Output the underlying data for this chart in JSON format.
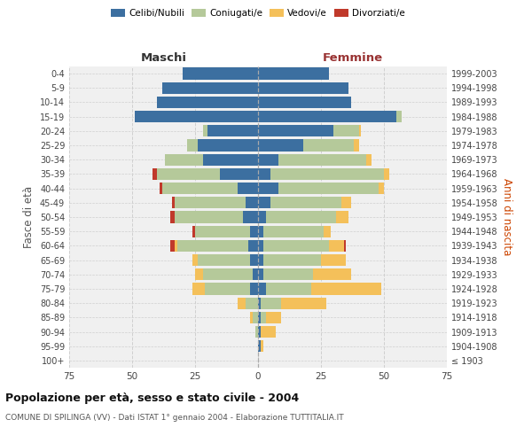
{
  "age_groups": [
    "100+",
    "95-99",
    "90-94",
    "85-89",
    "80-84",
    "75-79",
    "70-74",
    "65-69",
    "60-64",
    "55-59",
    "50-54",
    "45-49",
    "40-44",
    "35-39",
    "30-34",
    "25-29",
    "20-24",
    "15-19",
    "10-14",
    "5-9",
    "0-4"
  ],
  "birth_years": [
    "≤ 1903",
    "1904-1908",
    "1909-1913",
    "1914-1918",
    "1919-1923",
    "1924-1928",
    "1929-1933",
    "1934-1938",
    "1939-1943",
    "1944-1948",
    "1949-1953",
    "1954-1958",
    "1959-1963",
    "1964-1968",
    "1969-1973",
    "1974-1978",
    "1979-1983",
    "1984-1988",
    "1989-1993",
    "1994-1998",
    "1999-2003"
  ],
  "males": {
    "celibi": [
      0,
      0,
      0,
      0,
      0,
      3,
      2,
      3,
      4,
      3,
      6,
      5,
      8,
      15,
      22,
      24,
      20,
      49,
      40,
      38,
      30
    ],
    "coniugati": [
      0,
      0,
      1,
      2,
      5,
      18,
      20,
      21,
      28,
      22,
      27,
      28,
      30,
      25,
      15,
      4,
      2,
      0,
      0,
      0,
      0
    ],
    "vedovi": [
      0,
      0,
      0,
      1,
      3,
      5,
      3,
      2,
      1,
      0,
      0,
      0,
      0,
      0,
      0,
      0,
      0,
      0,
      0,
      0,
      0
    ],
    "divorziati": [
      0,
      0,
      0,
      0,
      0,
      0,
      0,
      0,
      2,
      1,
      2,
      1,
      1,
      2,
      0,
      0,
      0,
      0,
      0,
      0,
      0
    ]
  },
  "females": {
    "nubili": [
      0,
      1,
      1,
      1,
      1,
      3,
      2,
      2,
      2,
      2,
      3,
      5,
      8,
      5,
      8,
      18,
      30,
      55,
      37,
      36,
      28
    ],
    "coniugate": [
      0,
      0,
      0,
      2,
      8,
      18,
      20,
      23,
      26,
      24,
      28,
      28,
      40,
      45,
      35,
      20,
      10,
      2,
      0,
      0,
      0
    ],
    "vedove": [
      0,
      1,
      6,
      6,
      18,
      28,
      15,
      10,
      6,
      3,
      5,
      4,
      2,
      2,
      2,
      2,
      1,
      0,
      0,
      0,
      0
    ],
    "divorziate": [
      0,
      0,
      0,
      0,
      0,
      0,
      0,
      0,
      1,
      0,
      0,
      0,
      0,
      0,
      0,
      0,
      0,
      0,
      0,
      0,
      0
    ]
  },
  "colors": {
    "celibi": "#3c6fa0",
    "coniugati": "#b5c99a",
    "vedovi": "#f4c05a",
    "divorziati": "#c0392b"
  },
  "legend_labels": [
    "Celibi/Nubili",
    "Coniugati/e",
    "Vedovi/e",
    "Divorziati/e"
  ],
  "title": "Popolazione per età, sesso e stato civile - 2004",
  "subtitle": "COMUNE DI SPILINGA (VV) - Dati ISTAT 1° gennaio 2004 - Elaborazione TUTTITALIA.IT",
  "xlabel_left": "Maschi",
  "xlabel_right": "Femmine",
  "ylabel_left": "Fasce di età",
  "ylabel_right": "Anni di nascita",
  "xlim": 75,
  "bg_axes": "#f0f0f0",
  "bg_fig": "#ffffff"
}
